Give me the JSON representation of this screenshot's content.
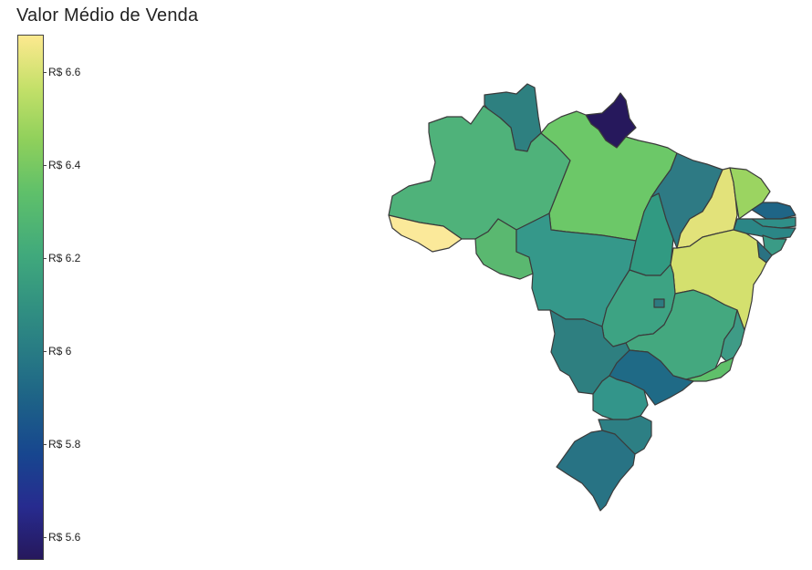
{
  "title": "Valor Médio de Venda",
  "colorbar": {
    "ticks": [
      "R$ 6.6",
      "R$ 6.4",
      "R$ 6.2",
      "R$ 6",
      "R$ 5.8",
      "R$ 5.6"
    ]
  },
  "states": [
    {
      "key": "rr",
      "color": "#2e8080"
    },
    {
      "key": "ap",
      "color": "#26185c"
    },
    {
      "key": "am",
      "color": "#4fb27a"
    },
    {
      "key": "pa",
      "color": "#6cc868"
    },
    {
      "key": "ac",
      "color": "#fbe99a"
    },
    {
      "key": "ro",
      "color": "#5ab870"
    },
    {
      "key": "mt",
      "color": "#35988a"
    },
    {
      "key": "to",
      "color": "#319a82"
    },
    {
      "key": "ma",
      "color": "#2e7a84"
    },
    {
      "key": "pi",
      "color": "#e2e27a"
    },
    {
      "key": "ce",
      "color": "#9bd461"
    },
    {
      "key": "rn",
      "color": "#1f6586"
    },
    {
      "key": "pb",
      "color": "#2f8f88"
    },
    {
      "key": "pe",
      "color": "#2b8686"
    },
    {
      "key": "al",
      "color": "#3a9b86"
    },
    {
      "key": "se",
      "color": "#2a7282"
    },
    {
      "key": "ba",
      "color": "#d4e06e"
    },
    {
      "key": "go",
      "color": "#3da383"
    },
    {
      "key": "df",
      "color": "#2d7a80"
    },
    {
      "key": "mg",
      "color": "#44a87f"
    },
    {
      "key": "es",
      "color": "#3e9b86"
    },
    {
      "key": "rj",
      "color": "#5fc06a"
    },
    {
      "key": "ms",
      "color": "#2e7f80"
    },
    {
      "key": "sp",
      "color": "#1f6a86"
    },
    {
      "key": "pr",
      "color": "#33958a"
    },
    {
      "key": "sc",
      "color": "#2d7f84"
    },
    {
      "key": "rs",
      "color": "#287384"
    }
  ]
}
